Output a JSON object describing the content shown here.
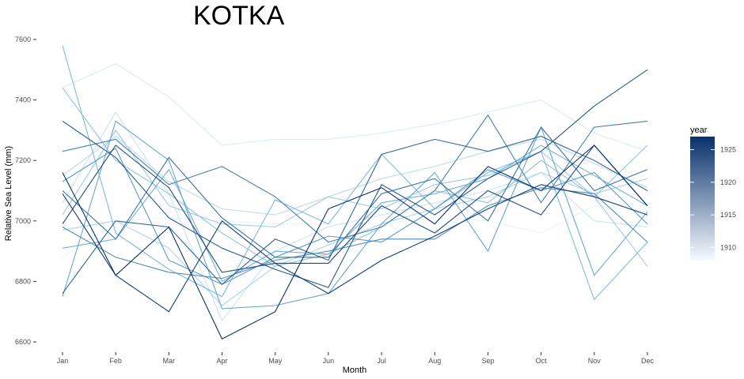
{
  "chart_data": {
    "type": "line",
    "title": "KOTKA",
    "xlabel": "Month",
    "ylabel": "Relative Sea Level (mm)",
    "categories": [
      "Jan",
      "Feb",
      "Mar",
      "Apr",
      "May",
      "Jun",
      "Jul",
      "Aug",
      "Sep",
      "Oct",
      "Nov",
      "Dec"
    ],
    "ylim": [
      6570,
      7610
    ],
    "yticks": [
      6600,
      6800,
      7000,
      7200,
      7400,
      7600
    ],
    "grid": false,
    "legend": {
      "title": "year",
      "position": "right",
      "type": "colorbar",
      "range": [
        1908,
        1927
      ],
      "ticks": [
        1910,
        1915,
        1920,
        1925
      ],
      "color_low": "#f7fbff",
      "color_high": "#08306b"
    },
    "series": [
      {
        "year": 1909,
        "values": [
          6880,
          7000,
          7010,
          7000,
          6990,
          6990,
          6990,
          7010,
          7000,
          6960,
          7050,
          7030
        ]
      },
      {
        "year": 1910,
        "values": [
          7440,
          7520,
          7410,
          7250,
          7270,
          7270,
          7290,
          7320,
          7360,
          7400,
          7290,
          7230
        ]
      },
      {
        "year": 1911,
        "values": [
          7060,
          7360,
          7090,
          6670,
          6900,
          6980,
          7020,
          7060,
          7100,
          7160,
          7000,
          6980
        ]
      },
      {
        "year": 1912,
        "values": [
          7150,
          7280,
          7130,
          7040,
          7020,
          7080,
          7140,
          7180,
          7230,
          7270,
          7190,
          7110
        ]
      },
      {
        "year": 1913,
        "values": [
          6970,
          7000,
          6910,
          6720,
          6850,
          6920,
          6990,
          7040,
          7080,
          7160,
          7090,
          7140
        ]
      },
      {
        "year": 1914,
        "values": [
          7020,
          7300,
          7050,
          6990,
          6980,
          7080,
          7040,
          7120,
          7150,
          7230,
          7080,
          6850
        ]
      },
      {
        "year": 1915,
        "values": [
          7440,
          7200,
          7090,
          6960,
          6850,
          6890,
          6980,
          7100,
          7060,
          7200,
          7080,
          7250
        ]
      },
      {
        "year": 1916,
        "values": [
          7580,
          6960,
          6840,
          6750,
          7070,
          6990,
          7220,
          7040,
          7160,
          7230,
          6740,
          6930
        ]
      },
      {
        "year": 1917,
        "values": [
          6910,
          6940,
          7170,
          6800,
          6900,
          6890,
          7060,
          7090,
          7140,
          7250,
          7150,
          7050
        ]
      },
      {
        "year": 1918,
        "values": [
          6750,
          7330,
          7200,
          6710,
          6720,
          6760,
          6990,
          7160,
          6900,
          7310,
          6820,
          7030
        ]
      },
      {
        "year": 1919,
        "values": [
          7130,
          7240,
          6870,
          6790,
          6880,
          6950,
          6930,
          7040,
          7170,
          7100,
          7160,
          6990
        ]
      },
      {
        "year": 1920,
        "values": [
          6980,
          6880,
          6830,
          6810,
          6870,
          6900,
          6940,
          6940,
          7050,
          7110,
          7090,
          6930
        ]
      },
      {
        "year": 1921,
        "values": [
          7230,
          7270,
          7120,
          7180,
          7080,
          6930,
          6980,
          7100,
          7350,
          7060,
          7310,
          7330
        ]
      },
      {
        "year": 1922,
        "values": [
          7100,
          6940,
          7210,
          7010,
          6880,
          6880,
          7090,
          7140,
          7000,
          7310,
          7100,
          7170
        ]
      },
      {
        "year": 1923,
        "values": [
          6760,
          7000,
          6980,
          6790,
          6940,
          6870,
          7220,
          7270,
          7230,
          7280,
          7200,
          7100
        ]
      },
      {
        "year": 1924,
        "values": [
          7330,
          7210,
          7010,
          6910,
          6840,
          6780,
          7120,
          7020,
          7140,
          7230,
          7380,
          7500
        ]
      },
      {
        "year": 1925,
        "values": [
          6990,
          7250,
          7110,
          6830,
          6860,
          6860,
          7050,
          6960,
          7100,
          7020,
          7250,
          7050
        ]
      },
      {
        "year": 1926,
        "values": [
          7090,
          6820,
          6700,
          7000,
          6860,
          6760,
          6870,
          6950,
          7040,
          7120,
          7080,
          7020
        ]
      },
      {
        "year": 1927,
        "values": [
          7160,
          6820,
          6980,
          6610,
          6700,
          7040,
          7110,
          6990,
          7180,
          7100,
          7250,
          7050
        ]
      }
    ]
  }
}
